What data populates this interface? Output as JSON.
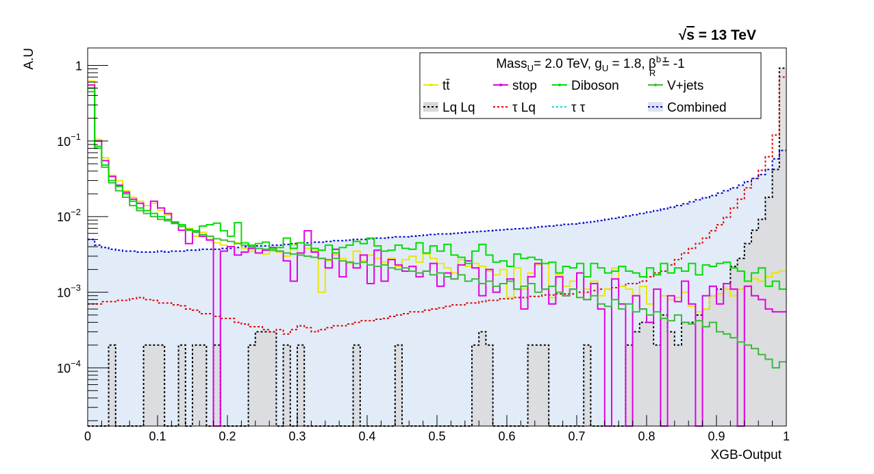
{
  "chart_data": {
    "type": "histogram",
    "title": "",
    "energy_label": {
      "sqrt": "√",
      "s": "s",
      "rest": " = 13 TeV"
    },
    "xlabel": "XGB-Output",
    "ylabel": "A.U",
    "xlim": [
      0,
      1
    ],
    "ylim": [
      1.7e-05,
      1.7
    ],
    "log_y": true,
    "grid": false,
    "nbins": 100,
    "x_ticks": [
      "0",
      "0.1",
      "0.2",
      "0.3",
      "0.4",
      "0.5",
      "0.6",
      "0.7",
      "0.8",
      "0.9",
      "1"
    ],
    "y_ticks": [
      {
        "value": 1,
        "base": "1",
        "exp": ""
      },
      {
        "value": 0.1,
        "base": "10",
        "exp": "−1"
      },
      {
        "value": 0.01,
        "base": "10",
        "exp": "−2"
      },
      {
        "value": 0.001,
        "base": "10",
        "exp": "−3"
      },
      {
        "value": 0.0001,
        "base": "10",
        "exp": "−4"
      }
    ],
    "legend": {
      "placement": "top-right",
      "header": {
        "p1": "Mass",
        "s1": "U",
        "p2": "= 2.0 TeV, g",
        "s2": "U",
        "p3": " = 1.8, β",
        "sup": "b τ",
        "sub": "R",
        "p4": " = -1"
      },
      "entries": [
        {
          "label": "tt̄",
          "color": "#e8e800",
          "style": "solid",
          "marker": "dot"
        },
        {
          "label": "stop",
          "color": "#e000e0",
          "style": "solid",
          "marker": "dot"
        },
        {
          "label": "Diboson",
          "color": "#00dd00",
          "style": "solid",
          "marker": "dot"
        },
        {
          "label": "V+jets",
          "color": "#3cb83c",
          "style": "solid",
          "marker": "dot"
        },
        {
          "label": "Lq Lq",
          "color": "#000000",
          "style": "dotted",
          "marker": "fill",
          "fill": "#d8d8d8"
        },
        {
          "label": "τ Lq",
          "color": "#dd0000",
          "style": "dotted",
          "marker": "none"
        },
        {
          "label": "τ τ",
          "color": "#00d8d8",
          "style": "dotted",
          "marker": "none"
        },
        {
          "label": "Combined",
          "color": "#0000cc",
          "style": "dotted",
          "marker": "fill",
          "fill": "#dde0ee"
        }
      ]
    },
    "series": [
      {
        "name": "tt̄",
        "color": "#e8e800",
        "style": "solid",
        "values": [
          0.62,
          0.105,
          0.06,
          0.035,
          0.03,
          0.022,
          0.018,
          0.016,
          0.014,
          0.015,
          0.012,
          0.0105,
          0.0085,
          0.0075,
          0.007,
          0.0055,
          0.0062,
          0.005,
          0.0045,
          0.0042,
          0.004,
          0.0045,
          0.0038,
          0.0035,
          0.0033,
          0.0032,
          0.0035,
          0.0034,
          0.003,
          0.0042,
          0.0033,
          0.0038,
          0.0035,
          0.001,
          0.0026,
          0.0031,
          0.0028,
          0.0024,
          0.0035,
          0.0026,
          0.0031,
          0.0028,
          0.0025,
          0.0028,
          0.0022,
          0.0027,
          0.003,
          0.0025,
          0.0032,
          0.0028,
          0.0024,
          0.0021,
          0.0018,
          0.0027,
          0.0022,
          0.0024,
          0.0022,
          0.0019,
          0.0017,
          0.002,
          0.00085,
          0.0021,
          0.0011,
          0.0018,
          0.0023,
          0.0024,
          0.00085,
          0.0017,
          0.0012,
          0.0014,
          0.00085,
          0.0011,
          0.0014,
          0.0009,
          0.0011,
          0.0021,
          0.0012,
          0.0011,
          0.0009,
          0.0012,
          0.0007,
          0.0011,
          0.0009,
          0.0008,
          0.00085,
          0.001,
          0.00065,
          0.00055,
          0.0006,
          0.0009,
          0.00095,
          0.0011,
          0.0009,
          0.0011,
          0.0012,
          0.0015,
          0.0014,
          0.0016,
          0.0018,
          0.0019
        ]
      },
      {
        "name": "stop",
        "color": "#e000e0",
        "style": "solid",
        "values": [
          0.55,
          0.1,
          0.055,
          0.034,
          0.026,
          0.021,
          0.017,
          0.015,
          0.012,
          0.016,
          0.013,
          0.011,
          0.0082,
          0.0066,
          0.0044,
          0.0065,
          0.0055,
          0.0049,
          1.7e-05,
          0.0035,
          0.004,
          0.0031,
          0.0034,
          0.0038,
          0.0033,
          0.0036,
          0.0039,
          0.0035,
          0.0026,
          0.0014,
          0.0033,
          0.0065,
          0.0034,
          0.0028,
          0.0021,
          0.0037,
          0.0016,
          0.0025,
          0.0021,
          0.0031,
          0.0013,
          0.0036,
          0.0014,
          0.0027,
          0.0023,
          0.0019,
          0.0022,
          0.0016,
          0.0019,
          0.0024,
          0.0012,
          0.0018,
          0.0015,
          0.0023,
          0.0026,
          0.0021,
          0.0009,
          0.002,
          0.001,
          0.0013,
          0.0015,
          0.0011,
          0.0006,
          0.0016,
          0.0024,
          0.0011,
          0.0007,
          0.0016,
          0.0009,
          0.0011,
          0.0018,
          0.0008,
          0.0013,
          0.0006,
          1.7e-05,
          0.0015,
          0.0007,
          1.7e-05,
          0.0009,
          0.0006,
          0.0004,
          0.0011,
          1.7e-05,
          0.0009,
          0.00075,
          0.0014,
          0.0007,
          1.7e-05,
          0.0009,
          0.0012,
          0.0007,
          0.0013,
          0.0011,
          1.7e-05,
          0.0012,
          0.0009,
          0.0008,
          0.0006,
          0.00055,
          0.00055
        ]
      },
      {
        "name": "Diboson",
        "color": "#00dd00",
        "style": "solid",
        "values": [
          0.5,
          0.085,
          0.048,
          0.03,
          0.025,
          0.02,
          0.016,
          0.013,
          0.012,
          0.011,
          0.01,
          0.0092,
          0.0085,
          0.0078,
          0.0068,
          0.0065,
          0.0075,
          0.0078,
          0.0082,
          0.0065,
          0.0055,
          0.0083,
          0.0045,
          0.0042,
          0.0044,
          0.0046,
          0.0038,
          0.0039,
          0.0052,
          0.0038,
          0.0045,
          0.0042,
          0.0038,
          0.0036,
          0.0042,
          0.0033,
          0.0039,
          0.0042,
          0.0047,
          0.0044,
          0.0052,
          0.0041,
          0.0035,
          0.0036,
          0.0042,
          0.0038,
          0.0037,
          0.0045,
          0.0033,
          0.0041,
          0.0035,
          0.0043,
          0.0031,
          0.0029,
          0.0024,
          0.0035,
          0.0043,
          0.0031,
          0.0025,
          0.0026,
          0.0022,
          0.0032,
          0.0028,
          0.0029,
          0.0027,
          0.0024,
          0.0025,
          0.0018,
          0.0022,
          0.0021,
          0.0024,
          0.0016,
          0.0024,
          0.0021,
          0.0018,
          0.0019,
          0.0022,
          0.0019,
          0.0018,
          0.0016,
          0.0021,
          0.0017,
          0.0024,
          0.0018,
          0.0021,
          0.0019,
          0.0024,
          0.0017,
          0.0023,
          0.0022,
          0.0024,
          0.0025,
          0.0021,
          0.0019,
          0.0014,
          0.0018,
          0.0021,
          0.0012,
          0.0014,
          0.0011
        ]
      },
      {
        "name": "V+jets",
        "color": "#3cb83c",
        "style": "solid",
        "values": [
          0.45,
          0.08,
          0.045,
          0.028,
          0.022,
          0.018,
          0.014,
          0.012,
          0.011,
          0.01,
          0.0092,
          0.0088,
          0.0081,
          0.0074,
          0.0066,
          0.0062,
          0.0058,
          0.0055,
          0.0051,
          0.0049,
          0.0047,
          0.0044,
          0.0042,
          0.004,
          0.0038,
          0.0037,
          0.0036,
          0.0035,
          0.0033,
          0.0032,
          0.0031,
          0.003,
          0.0029,
          0.0028,
          0.0027,
          0.0028,
          0.0026,
          0.0025,
          0.0024,
          0.0025,
          0.0023,
          0.0022,
          0.0023,
          0.0021,
          0.002,
          0.0021,
          0.0019,
          0.0018,
          0.0019,
          0.0017,
          0.0018,
          0.0016,
          0.0015,
          0.0017,
          0.0014,
          0.0015,
          0.0013,
          0.0014,
          0.0012,
          0.0013,
          0.0014,
          0.0011,
          0.0012,
          0.0013,
          0.001,
          0.0011,
          0.0012,
          0.001,
          0.0009,
          0.0011,
          0.00085,
          0.0008,
          0.0009,
          0.0007,
          0.00065,
          0.0008,
          0.0006,
          0.0007,
          0.00055,
          0.0006,
          0.0005,
          0.00055,
          0.00045,
          0.00042,
          0.0005,
          0.0004,
          0.00038,
          0.00042,
          0.00035,
          0.0004,
          0.0003,
          0.00028,
          0.00025,
          0.00022,
          0.0002,
          0.00018,
          0.00015,
          0.00013,
          0.0001,
          0.00012
        ]
      },
      {
        "name": "Lq Lq",
        "color": "#000000",
        "style": "dotted",
        "fill": "#d8d8d8",
        "values": [
          1.7e-05,
          1.7e-05,
          1.7e-05,
          0.0002,
          1.7e-05,
          1.7e-05,
          1.7e-05,
          1.7e-05,
          0.0002,
          0.0002,
          0.0002,
          1.7e-05,
          1.7e-05,
          0.0002,
          1.7e-05,
          0.0002,
          0.0002,
          1.7e-05,
          0.0002,
          1.7e-05,
          1.7e-05,
          1.7e-05,
          1.7e-05,
          0.0002,
          0.0003,
          0.0003,
          0.0003,
          1.7e-05,
          0.0002,
          1.7e-05,
          0.0002,
          1.7e-05,
          1.7e-05,
          1.7e-05,
          1.7e-05,
          1.7e-05,
          1.7e-05,
          1.7e-05,
          0.0002,
          1.7e-05,
          1.7e-05,
          1.7e-05,
          1.7e-05,
          1.7e-05,
          0.0002,
          1.7e-05,
          1.7e-05,
          1.7e-05,
          1.7e-05,
          1.7e-05,
          1.7e-05,
          1.7e-05,
          1.7e-05,
          1.7e-05,
          1.7e-05,
          0.0002,
          0.0003,
          0.0002,
          1.7e-05,
          1.7e-05,
          1.7e-05,
          1.7e-05,
          1.7e-05,
          0.0002,
          0.0002,
          0.0002,
          1.7e-05,
          1.7e-05,
          1.7e-05,
          1.7e-05,
          1.7e-05,
          0.0002,
          1.7e-05,
          1.7e-05,
          1.7e-05,
          1.7e-05,
          1.7e-05,
          0.0002,
          0.0003,
          0.0004,
          0.0004,
          0.0002,
          0.0005,
          0.0003,
          0.0002,
          0.0004,
          0.0004,
          0.0005,
          0.0006,
          0.0009,
          0.0011,
          0.0013,
          0.0022,
          0.0028,
          0.0044,
          0.0066,
          0.0092,
          0.018,
          0.042,
          0.92
        ]
      },
      {
        "name": "τ Lq",
        "color": "#dd0000",
        "style": "dotted",
        "values": [
          0.0007,
          0.0007,
          0.00075,
          0.00075,
          0.00078,
          0.00078,
          0.00082,
          0.00085,
          0.0008,
          0.00078,
          0.00072,
          0.00072,
          0.00068,
          0.00066,
          0.0006,
          0.00058,
          0.00052,
          0.00052,
          0.00048,
          0.00045,
          0.00045,
          0.0004,
          0.00038,
          0.00035,
          0.00035,
          0.00032,
          0.0003,
          0.00032,
          0.00028,
          0.00032,
          0.00036,
          0.00034,
          0.0003,
          0.00032,
          0.00034,
          0.00036,
          0.00036,
          0.00038,
          0.0004,
          0.00042,
          0.00042,
          0.00044,
          0.00045,
          0.00048,
          0.0005,
          0.00052,
          0.00055,
          0.00055,
          0.00058,
          0.0006,
          0.00062,
          0.00065,
          0.00068,
          0.00068,
          0.00072,
          0.00072,
          0.00075,
          0.00078,
          0.00078,
          0.00082,
          0.00082,
          0.00085,
          0.00085,
          0.00088,
          0.00088,
          0.00092,
          0.00092,
          0.00095,
          0.00095,
          0.00095,
          0.001,
          0.001,
          0.00105,
          0.0011,
          0.0011,
          0.00115,
          0.0012,
          0.0013,
          0.0013,
          0.0014,
          0.0016,
          0.0018,
          0.0019,
          0.0023,
          0.0027,
          0.0033,
          0.0038,
          0.0044,
          0.0052,
          0.0065,
          0.0078,
          0.0098,
          0.013,
          0.017,
          0.024,
          0.032,
          0.041,
          0.062,
          0.12,
          0.7
        ]
      },
      {
        "name": "Combined",
        "color": "#0000cc",
        "style": "dotted",
        "fill": "#dde9f7",
        "values": [
          0.005,
          0.0042,
          0.0039,
          0.0037,
          0.0036,
          0.0035,
          0.0035,
          0.0034,
          0.0034,
          0.0034,
          0.0035,
          0.0034,
          0.0035,
          0.0035,
          0.0036,
          0.0036,
          0.0037,
          0.0037,
          0.0037,
          0.0038,
          0.0038,
          0.0039,
          0.004,
          0.004,
          0.0041,
          0.0041,
          0.0042,
          0.0042,
          0.0043,
          0.0044,
          0.0045,
          0.0045,
          0.0046,
          0.0046,
          0.0047,
          0.0048,
          0.0048,
          0.0049,
          0.005,
          0.005,
          0.0051,
          0.0052,
          0.0052,
          0.0053,
          0.0054,
          0.0054,
          0.0055,
          0.0056,
          0.0057,
          0.0058,
          0.0059,
          0.0059,
          0.006,
          0.0061,
          0.0062,
          0.0063,
          0.0064,
          0.0065,
          0.0066,
          0.0067,
          0.0068,
          0.0069,
          0.007,
          0.0071,
          0.0073,
          0.0074,
          0.0075,
          0.0077,
          0.0079,
          0.008,
          0.0082,
          0.0084,
          0.0086,
          0.0089,
          0.0092,
          0.0095,
          0.0098,
          0.0102,
          0.0106,
          0.011,
          0.0115,
          0.012,
          0.0126,
          0.0133,
          0.014,
          0.0148,
          0.0157,
          0.0167,
          0.0178,
          0.019,
          0.0205,
          0.022,
          0.024,
          0.026,
          0.029,
          0.032,
          0.036,
          0.042,
          0.058,
          0.075
        ]
      }
    ]
  }
}
